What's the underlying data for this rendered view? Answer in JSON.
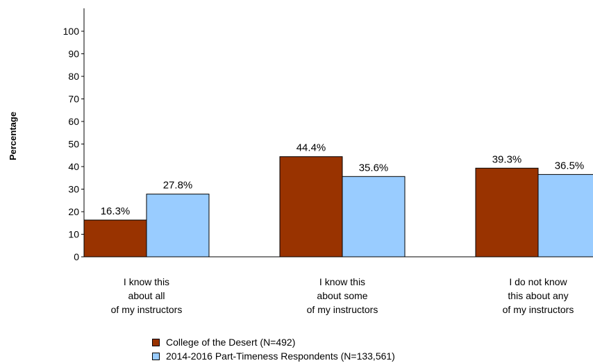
{
  "chart_data": {
    "type": "bar",
    "ylabel": "Percentage",
    "xlabel": "",
    "ylim": [
      0,
      100
    ],
    "yticks": [
      0,
      10,
      20,
      30,
      40,
      50,
      60,
      70,
      80,
      90,
      100
    ],
    "categories": [
      [
        "I know this",
        "about all",
        "of my instructors"
      ],
      [
        "I know this",
        "about some",
        "of my instructors"
      ],
      [
        "I do not know",
        "this about any",
        "of my instructors"
      ]
    ],
    "series": [
      {
        "name": "College of the Desert (N=492)",
        "color": "#993300",
        "values": [
          16.3,
          44.4,
          39.3
        ],
        "labels": [
          "16.3%",
          "44.4%",
          "39.3%"
        ]
      },
      {
        "name": "2014-2016 Part-Timeness Respondents (N=133,561)",
        "color": "#99CCFF",
        "values": [
          27.8,
          35.6,
          36.5
        ],
        "labels": [
          "27.8%",
          "35.6%",
          "36.5%"
        ]
      }
    ],
    "grid": false,
    "legend_position": "bottom"
  }
}
